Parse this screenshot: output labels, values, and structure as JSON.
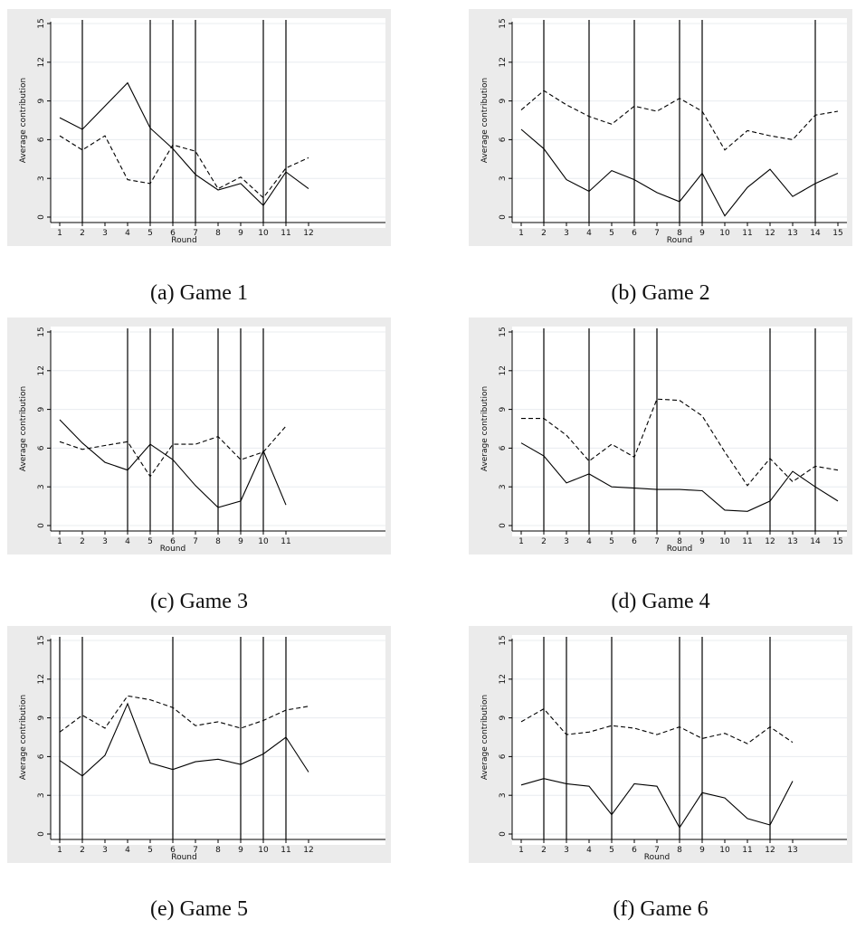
{
  "chart_data": [
    {
      "type": "line",
      "caption": "(a) Game 1",
      "xlabel": "Round",
      "ylabel": "Average contribution",
      "ylim": [
        0,
        15
      ],
      "yticks": [
        0,
        3,
        6,
        9,
        12,
        15
      ],
      "x_ticks": [
        1,
        2,
        3,
        4,
        5,
        6,
        7,
        8,
        9,
        10,
        11,
        12
      ],
      "x_max_rounds": 15,
      "grid": "horizontal",
      "vlines": [
        2,
        5,
        6,
        7,
        10,
        11
      ],
      "series": [
        {
          "style": "solid",
          "x": [
            1,
            2,
            3,
            4,
            5,
            6,
            7,
            8,
            9,
            10,
            11,
            12
          ],
          "values": [
            7.7,
            6.8,
            8.6,
            10.4,
            6.9,
            5.3,
            3.3,
            2.1,
            2.6,
            0.9,
            3.5,
            2.2
          ]
        },
        {
          "style": "dashed",
          "x": [
            1,
            2,
            3,
            4,
            5,
            6,
            7,
            8,
            9,
            10,
            11,
            12
          ],
          "values": [
            6.3,
            5.2,
            6.3,
            2.9,
            2.6,
            5.6,
            5.1,
            2.2,
            3.1,
            1.5,
            3.8,
            4.6
          ]
        }
      ]
    },
    {
      "type": "line",
      "caption": "(b) Game 2",
      "xlabel": "Round",
      "ylabel": "Average contribution",
      "ylim": [
        0,
        15
      ],
      "yticks": [
        0,
        3,
        6,
        9,
        12,
        15
      ],
      "x_ticks": [
        1,
        2,
        3,
        4,
        5,
        6,
        7,
        8,
        9,
        10,
        11,
        12,
        13,
        14,
        15
      ],
      "x_max_rounds": 15,
      "grid": "horizontal",
      "vlines": [
        2,
        4,
        6,
        8,
        9,
        14
      ],
      "series": [
        {
          "style": "solid",
          "x": [
            1,
            2,
            3,
            4,
            5,
            6,
            7,
            8,
            9,
            10,
            11,
            12,
            13,
            14,
            15
          ],
          "values": [
            6.8,
            5.3,
            2.9,
            2.0,
            3.6,
            2.9,
            1.9,
            1.2,
            3.4,
            0.1,
            2.3,
            3.7,
            1.6,
            2.6,
            3.4
          ]
        },
        {
          "style": "dashed",
          "x": [
            1,
            2,
            3,
            4,
            5,
            6,
            7,
            8,
            9,
            10,
            11,
            12,
            13,
            14,
            15
          ],
          "values": [
            8.3,
            9.8,
            8.7,
            7.8,
            7.2,
            8.6,
            8.2,
            9.2,
            8.2,
            5.2,
            6.7,
            6.3,
            6.0,
            7.9,
            8.2
          ]
        }
      ]
    },
    {
      "type": "line",
      "caption": "(c) Game 3",
      "xlabel": "Round",
      "ylabel": "Average contribution",
      "ylim": [
        0,
        15
      ],
      "yticks": [
        0,
        3,
        6,
        9,
        12,
        15
      ],
      "x_ticks": [
        1,
        2,
        3,
        4,
        5,
        6,
        7,
        8,
        9,
        10,
        11
      ],
      "x_max_rounds": 15,
      "grid": "horizontal",
      "vlines": [
        4,
        5,
        6,
        8,
        9,
        10
      ],
      "series": [
        {
          "style": "solid",
          "x": [
            1,
            2,
            3,
            4,
            5,
            6,
            7,
            8,
            9,
            10,
            11
          ],
          "values": [
            8.2,
            6.4,
            4.9,
            4.3,
            6.3,
            5.1,
            3.1,
            1.4,
            1.9,
            5.8,
            1.6
          ]
        },
        {
          "style": "dashed",
          "x": [
            1,
            2,
            3,
            4,
            5,
            6,
            7,
            8,
            9,
            10,
            11
          ],
          "values": [
            6.5,
            5.9,
            6.2,
            6.5,
            3.8,
            6.3,
            6.3,
            6.9,
            5.1,
            5.7,
            7.7
          ]
        }
      ]
    },
    {
      "type": "line",
      "caption": "(d) Game 4",
      "xlabel": "Round",
      "ylabel": "Average contribution",
      "ylim": [
        0,
        15
      ],
      "yticks": [
        0,
        3,
        6,
        9,
        12,
        15
      ],
      "x_ticks": [
        1,
        2,
        3,
        4,
        5,
        6,
        7,
        8,
        9,
        10,
        11,
        12,
        13,
        14,
        15
      ],
      "x_max_rounds": 15,
      "grid": "horizontal",
      "vlines": [
        2,
        4,
        6,
        7,
        12,
        14
      ],
      "series": [
        {
          "style": "solid",
          "x": [
            1,
            2,
            3,
            4,
            5,
            6,
            7,
            8,
            9,
            10,
            11,
            12,
            13,
            14,
            15
          ],
          "values": [
            6.4,
            5.4,
            3.3,
            4.0,
            3.0,
            2.9,
            2.8,
            2.8,
            2.7,
            1.2,
            1.1,
            1.9,
            4.2,
            3.0,
            1.9
          ]
        },
        {
          "style": "dashed",
          "x": [
            1,
            2,
            3,
            4,
            5,
            6,
            7,
            8,
            9,
            10,
            11,
            12,
            13,
            14,
            15
          ],
          "values": [
            8.3,
            8.3,
            7.0,
            5.0,
            6.3,
            5.3,
            9.8,
            9.7,
            8.5,
            5.7,
            3.1,
            5.2,
            3.4,
            4.6,
            4.3
          ]
        }
      ]
    },
    {
      "type": "line",
      "caption": "(e) Game 5",
      "xlabel": "Round",
      "ylabel": "Average contribution",
      "ylim": [
        0,
        15
      ],
      "yticks": [
        0,
        3,
        6,
        9,
        12,
        15
      ],
      "x_ticks": [
        1,
        2,
        3,
        4,
        5,
        6,
        7,
        8,
        9,
        10,
        11,
        12
      ],
      "x_max_rounds": 15,
      "grid": "horizontal",
      "vlines": [
        1,
        2,
        6,
        9,
        10,
        11
      ],
      "series": [
        {
          "style": "solid",
          "x": [
            1,
            2,
            3,
            4,
            5,
            6,
            7,
            8,
            9,
            10,
            11,
            12
          ],
          "values": [
            5.7,
            4.5,
            6.1,
            10.1,
            5.5,
            5.0,
            5.6,
            5.8,
            5.4,
            6.2,
            7.5,
            4.8
          ]
        },
        {
          "style": "dashed",
          "x": [
            1,
            2,
            3,
            4,
            5,
            6,
            7,
            8,
            9,
            10,
            11,
            12
          ],
          "values": [
            7.9,
            9.2,
            8.2,
            10.7,
            10.4,
            9.8,
            8.4,
            8.7,
            8.2,
            8.8,
            9.6,
            9.9
          ]
        }
      ]
    },
    {
      "type": "line",
      "caption": "(f) Game 6",
      "xlabel": "Round",
      "ylabel": "Average contribution",
      "ylim": [
        0,
        15
      ],
      "yticks": [
        0,
        3,
        6,
        9,
        12,
        15
      ],
      "x_ticks": [
        1,
        2,
        3,
        4,
        5,
        6,
        7,
        8,
        9,
        10,
        11,
        12,
        13
      ],
      "x_max_rounds": 15,
      "grid": "horizontal",
      "vlines": [
        2,
        3,
        5,
        8,
        9,
        12
      ],
      "series": [
        {
          "style": "solid",
          "x": [
            1,
            2,
            3,
            4,
            5,
            6,
            7,
            8,
            9,
            10,
            11,
            12,
            13
          ],
          "values": [
            3.8,
            4.3,
            3.9,
            3.7,
            1.5,
            3.9,
            3.7,
            0.5,
            3.2,
            2.8,
            1.2,
            0.7,
            4.1
          ]
        },
        {
          "style": "dashed",
          "x": [
            1,
            2,
            3,
            4,
            5,
            6,
            7,
            8,
            9,
            10,
            11,
            12,
            13
          ],
          "values": [
            8.7,
            9.7,
            7.7,
            7.9,
            8.4,
            8.2,
            7.7,
            8.3,
            7.4,
            7.8,
            7.0,
            8.3,
            7.1
          ]
        }
      ]
    }
  ]
}
